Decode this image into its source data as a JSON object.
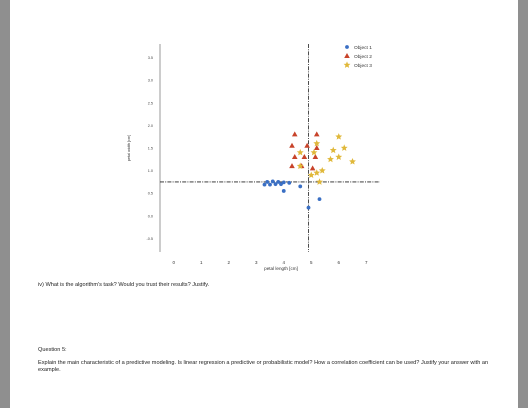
{
  "document": {
    "question_iv": "iv) What is the algorithm's task? Would you trust their results? Justify.",
    "question5_heading": "Question 5:",
    "question5_body": "Explain the main characteristic of a predictive modeling. Is linear regression a predictive or probabilistic model? How a correlation coefficient can be used? Justify your answer with an example."
  },
  "chart_data": {
    "type": "scatter",
    "xlabel": "petal length [cm]",
    "ylabel": "petal width [cm]",
    "x_ticks": [
      "0",
      "1",
      "2",
      "3",
      "4",
      "5",
      "6",
      "7"
    ],
    "y_ticks": [
      "3.5",
      "3.0",
      "2.5",
      "2.0",
      "1.5",
      "1.0",
      "0.5",
      "0.0",
      "-0.5"
    ],
    "xlim": [
      -0.5,
      7.5
    ],
    "ylim": [
      -0.8,
      3.8
    ],
    "reference_lines": {
      "vertical_x": 4.9,
      "horizontal_y": 0.75
    },
    "legend_position": "top-right",
    "series": [
      {
        "name": "Object 1",
        "marker": "circle",
        "color": "#3a6fc4",
        "points": [
          [
            3.4,
            0.75
          ],
          [
            3.6,
            0.76
          ],
          [
            3.8,
            0.75
          ],
          [
            4.0,
            0.74
          ],
          [
            3.5,
            0.69
          ],
          [
            3.7,
            0.7
          ],
          [
            3.9,
            0.7
          ],
          [
            4.2,
            0.73
          ],
          [
            3.3,
            0.69
          ],
          [
            4.0,
            0.55
          ],
          [
            4.6,
            0.65
          ],
          [
            5.3,
            0.37
          ],
          [
            4.9,
            0.18
          ]
        ]
      },
      {
        "name": "Object 2",
        "marker": "triangle",
        "color": "#c8432a",
        "points": [
          [
            4.4,
            1.8
          ],
          [
            5.2,
            1.8
          ],
          [
            4.3,
            1.55
          ],
          [
            4.85,
            1.55
          ],
          [
            5.2,
            1.5
          ],
          [
            4.4,
            1.3
          ],
          [
            4.75,
            1.3
          ],
          [
            5.15,
            1.3
          ],
          [
            4.3,
            1.1
          ],
          [
            4.65,
            1.1
          ],
          [
            5.05,
            1.05
          ]
        ]
      },
      {
        "name": "Object 3",
        "marker": "star",
        "color": "#e0b83a",
        "points": [
          [
            6.0,
            1.75
          ],
          [
            5.2,
            1.6
          ],
          [
            6.2,
            1.5
          ],
          [
            5.8,
            1.45
          ],
          [
            4.6,
            1.4
          ],
          [
            5.1,
            1.4
          ],
          [
            6.0,
            1.3
          ],
          [
            6.5,
            1.2
          ],
          [
            5.7,
            1.25
          ],
          [
            4.6,
            1.1
          ],
          [
            5.4,
            1.0
          ],
          [
            5.2,
            0.95
          ],
          [
            5.3,
            0.75
          ],
          [
            5.0,
            0.9
          ]
        ]
      }
    ]
  }
}
